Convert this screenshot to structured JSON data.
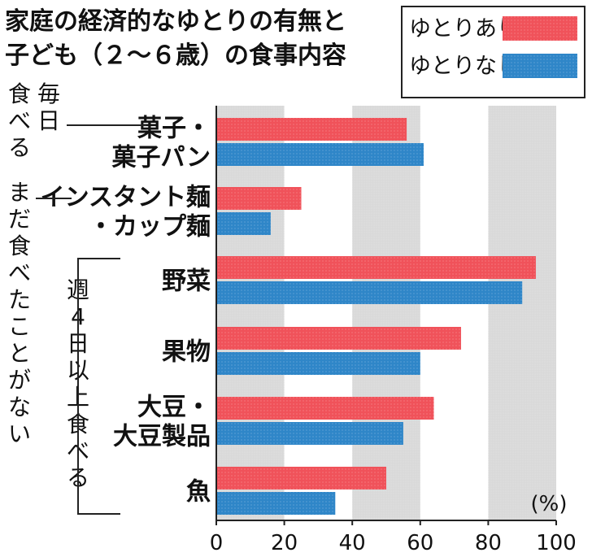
{
  "title_line1": "家庭の経済的なゆとりの有無と",
  "title_line2": "子ども（２～６歳）の食事内容",
  "unit_label": "(%)",
  "side_labels": {
    "daily": "毎日食べる",
    "never": "まだ食べたことがない",
    "four_days": "週4日以上食べる"
  },
  "colors": {
    "with": "#f0525a",
    "without": "#2f86c8",
    "band": "#d9d9d9"
  },
  "chart_data": {
    "type": "bar",
    "orientation": "horizontal",
    "title": "家庭の経済的なゆとりの有無と子ども（２～６歳）の食事内容",
    "xlabel": "(%)",
    "ylabel": "",
    "xlim": [
      0,
      100
    ],
    "xticks": [
      0,
      20,
      40,
      60,
      80,
      100
    ],
    "legend_position": "top-right",
    "categories": [
      [
        "菓子・",
        "菓子パン"
      ],
      [
        "インスタント麺",
        "・カップ麺"
      ],
      [
        "野菜"
      ],
      [
        "果物"
      ],
      [
        "大豆・",
        "大豆製品"
      ],
      [
        "魚"
      ]
    ],
    "series": [
      {
        "name": "ゆとりあり",
        "values": [
          56,
          25,
          94,
          72,
          64,
          50
        ]
      },
      {
        "name": "ゆとりなし",
        "values": [
          61,
          16,
          90,
          60,
          55,
          35
        ]
      }
    ]
  }
}
